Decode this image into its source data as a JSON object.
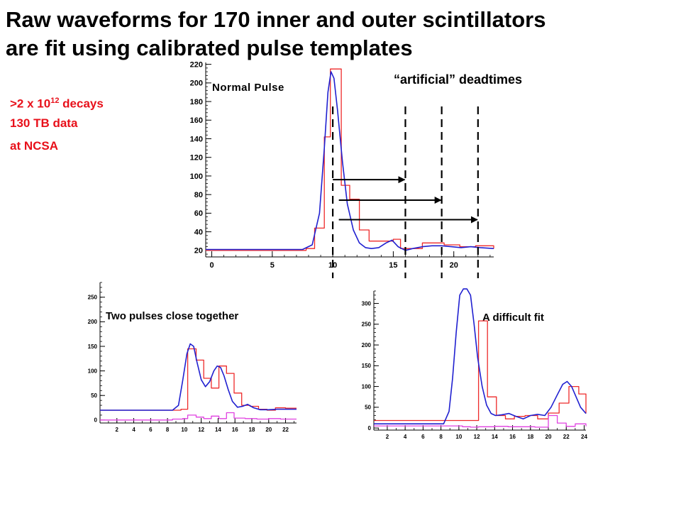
{
  "title_line1": "Raw waveforms for 170 inner and outer scintillators",
  "title_line2": "are fit using calibrated pulse templates",
  "stats": {
    "decays_prefix": ">2 x 10",
    "decays_exp": "12",
    "decays_suffix": " decays",
    "data": "130 TB data",
    "site": "at NCSA"
  },
  "colors": {
    "data": "#ee2a2a",
    "fit": "#2020d0",
    "residual": "#e040e0",
    "stats": "#e8101a"
  },
  "deadtime_label": "“artificial” deadtimes",
  "chart_data": [
    {
      "type": "line",
      "annotation": "Normal Pulse",
      "xlim": [
        -0.5,
        23.3
      ],
      "ylim": [
        13,
        222
      ],
      "xticks": [
        0,
        5,
        10,
        15,
        20
      ],
      "yticks": [
        20,
        40,
        60,
        80,
        100,
        120,
        140,
        160,
        180,
        200,
        220
      ],
      "series": [
        {
          "style": "step",
          "color": "#ee2a2a",
          "x": [
            -0.5,
            7.8,
            8.5,
            9.3,
            9.8,
            10.7,
            11.4,
            12.2,
            13.0,
            15.0,
            15.6,
            17.4,
            19.2,
            20.5,
            21.8,
            23.3
          ],
          "y": [
            20,
            22,
            44,
            142,
            215,
            90,
            75,
            42,
            30,
            32,
            22,
            28,
            26,
            24,
            25,
            22
          ]
        },
        {
          "style": "line",
          "color": "#2020d0",
          "x": [
            -0.5,
            7.5,
            8.3,
            8.9,
            9.3,
            9.6,
            9.85,
            10.1,
            10.4,
            10.8,
            11.2,
            11.7,
            12.2,
            12.7,
            13.2,
            13.8,
            14.4,
            14.9,
            15.4,
            16.0,
            16.6,
            17.4,
            18.2,
            19.0,
            19.8,
            20.6,
            21.4,
            22.2,
            23.3
          ],
          "y": [
            21,
            21,
            26,
            60,
            130,
            190,
            212,
            205,
            170,
            115,
            70,
            42,
            28,
            23,
            22,
            23,
            28,
            31,
            24,
            20,
            22,
            24,
            25,
            25,
            24,
            23,
            24,
            23,
            22
          ]
        }
      ],
      "deadtime_lines_x": [
        10,
        16,
        19,
        22
      ],
      "arrow_x_ranges": [
        [
          10,
          16
        ],
        [
          10.5,
          19
        ],
        [
          10.5,
          22
        ]
      ],
      "arrow_y": [
        96,
        74,
        53
      ]
    },
    {
      "type": "line",
      "annotation": "Two pulses close together",
      "xlim": [
        0,
        23.3
      ],
      "ylim": [
        -6,
        280
      ],
      "xticks": [
        2,
        4,
        6,
        8,
        10,
        12,
        14,
        16,
        18,
        20,
        22
      ],
      "yticks": [
        0,
        50,
        100,
        150,
        200,
        250
      ],
      "series": [
        {
          "style": "step",
          "color": "#ee2a2a",
          "x": [
            0,
            8.5,
            9.6,
            10.4,
            11.4,
            12.3,
            13.2,
            14.1,
            15.0,
            15.9,
            16.8,
            17.8,
            18.8,
            19.8,
            20.8,
            22,
            23.3
          ],
          "y": [
            20,
            20,
            22,
            145,
            122,
            85,
            65,
            110,
            95,
            55,
            30,
            28,
            22,
            20,
            25,
            24,
            24
          ]
        },
        {
          "style": "line",
          "color": "#2020d0",
          "x": [
            0,
            8.6,
            9.3,
            9.8,
            10.3,
            10.7,
            11.1,
            11.5,
            12.0,
            12.5,
            13.0,
            13.5,
            13.9,
            14.3,
            14.7,
            15.2,
            15.7,
            16.3,
            16.9,
            17.5,
            18.2,
            19,
            20,
            21,
            22,
            23.3
          ],
          "y": [
            20,
            20,
            30,
            80,
            135,
            155,
            150,
            118,
            82,
            68,
            78,
            100,
            110,
            107,
            90,
            62,
            38,
            26,
            28,
            32,
            25,
            21,
            21,
            22,
            22,
            22
          ]
        },
        {
          "style": "step",
          "color": "#e040e0",
          "x": [
            0,
            8.6,
            9.8,
            10.4,
            11.4,
            12.3,
            13.2,
            14.1,
            15.0,
            15.9,
            17.2,
            18.6,
            20.0,
            21.4,
            23.3
          ],
          "y": [
            0,
            2,
            3,
            10,
            6,
            3,
            8,
            3,
            15,
            4,
            3,
            2,
            3,
            2,
            2
          ]
        }
      ]
    },
    {
      "type": "line",
      "annotation": "A difficult fit",
      "xlim": [
        0.5,
        24.2
      ],
      "ylim": [
        -5,
        330
      ],
      "xticks": [
        2,
        4,
        6,
        8,
        10,
        12,
        14,
        16,
        18,
        20,
        22,
        24
      ],
      "yticks": [
        0,
        50,
        100,
        150,
        200,
        250,
        300
      ],
      "series": [
        {
          "style": "step",
          "color": "#ee2a2a",
          "x": [
            0.5,
            8.2,
            9.8,
            12.2,
            13.2,
            14.2,
            15.2,
            16.2,
            17.4,
            18.8,
            20.0,
            21.2,
            22.3,
            23.4,
            24.2
          ],
          "y": [
            18,
            18,
            18,
            258,
            75,
            30,
            22,
            28,
            30,
            22,
            36,
            60,
            100,
            82,
            35
          ]
        },
        {
          "style": "line",
          "color": "#2020d0",
          "x": [
            0.5,
            8.3,
            8.9,
            9.3,
            9.7,
            10.1,
            10.5,
            10.9,
            11.3,
            11.7,
            12.1,
            12.6,
            13.1,
            13.6,
            14.1,
            14.8,
            15.6,
            16.4,
            17.2,
            18.0,
            18.8,
            19.6,
            20.3,
            21.0,
            21.6,
            22.1,
            22.6,
            23.1,
            23.6,
            24.2
          ],
          "y": [
            10,
            10,
            40,
            120,
            230,
            320,
            335,
            335,
            320,
            250,
            170,
            100,
            55,
            35,
            30,
            32,
            35,
            28,
            22,
            30,
            33,
            30,
            50,
            80,
            105,
            112,
            100,
            75,
            50,
            35
          ]
        },
        {
          "style": "step",
          "color": "#e040e0",
          "x": [
            0.5,
            8.5,
            10.4,
            11.3,
            12.2,
            14.0,
            15.5,
            17.0,
            18.5,
            20.0,
            21.0,
            22.0,
            23.0,
            24.2
          ],
          "y": [
            5,
            5,
            3,
            2,
            3,
            4,
            3,
            3,
            2,
            30,
            12,
            4,
            10,
            4
          ]
        }
      ]
    }
  ]
}
